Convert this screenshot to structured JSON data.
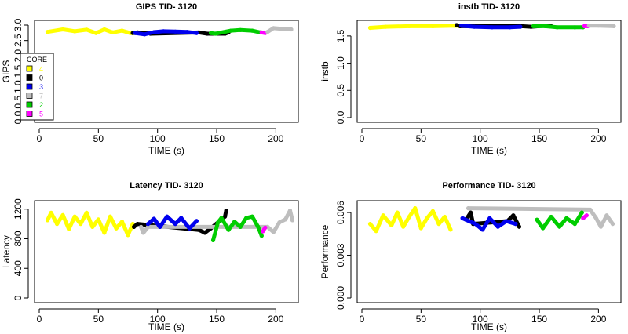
{
  "chart_data": [
    {
      "type": "scatter",
      "title": "GIPS TID- 3120",
      "xlabel": "TIME (s)",
      "ylabel": "GIPS",
      "xlim": [
        0,
        215
      ],
      "ylim": [
        0,
        3.0
      ],
      "x_ticks": [
        0,
        50,
        100,
        150,
        200
      ],
      "y_ticks": [
        0.0,
        0.5,
        1.0,
        1.5,
        2.0,
        2.5,
        3.0
      ],
      "y_tick_labels": [
        "0.0",
        "0.5",
        "1.0",
        "1.5",
        "2.0",
        "2.5",
        "3.0"
      ],
      "legend": {
        "title": "CORE",
        "placement": "left",
        "entries": [
          {
            "label": "4",
            "color": "#ffff00"
          },
          {
            "label": "0",
            "color": "#000000"
          },
          {
            "label": "3",
            "color": "#0000ee"
          },
          {
            "label": "7",
            "color": "#bebebe"
          },
          {
            "label": "2",
            "color": "#00cd00"
          },
          {
            "label": "5",
            "color": "#ff00ff"
          }
        ]
      },
      "series": [
        {
          "core": "4",
          "color": "#ffff00",
          "points": [
            [
              7,
              2.78
            ],
            [
              20,
              2.86
            ],
            [
              30,
              2.8
            ],
            [
              40,
              2.85
            ],
            [
              48,
              2.74
            ],
            [
              55,
              2.86
            ],
            [
              62,
              2.76
            ],
            [
              70,
              2.82
            ],
            [
              77,
              2.74
            ],
            [
              86,
              2.74
            ]
          ]
        },
        {
          "core": "0",
          "color": "#000000",
          "points": [
            [
              79,
              2.74
            ],
            [
              83,
              2.76
            ],
            [
              92,
              2.74
            ],
            [
              94,
              2.72
            ],
            [
              135,
              2.76
            ],
            [
              142,
              2.72
            ],
            [
              157,
              2.72
            ],
            [
              160,
              2.76
            ]
          ]
        },
        {
          "core": "3",
          "color": "#0000ee",
          "points": [
            [
              81,
              2.74
            ],
            [
              89,
              2.7
            ],
            [
              97,
              2.77
            ],
            [
              105,
              2.8
            ],
            [
              115,
              2.79
            ],
            [
              125,
              2.78
            ],
            [
              133,
              2.74
            ]
          ]
        },
        {
          "core": "2",
          "color": "#00cd00",
          "points": [
            [
              145,
              2.74
            ],
            [
              149,
              2.72
            ],
            [
              162,
              2.82
            ],
            [
              170,
              2.84
            ],
            [
              180,
              2.82
            ],
            [
              187,
              2.76
            ]
          ]
        },
        {
          "core": "5",
          "color": "#ff00ff",
          "points": [
            [
              188,
              2.76
            ],
            [
              191,
              2.74
            ]
          ]
        },
        {
          "core": "7",
          "color": "#bebebe",
          "points": [
            [
              193,
              2.78
            ],
            [
              198,
              2.9
            ],
            [
              205,
              2.88
            ],
            [
              213,
              2.86
            ]
          ]
        }
      ]
    },
    {
      "type": "scatter",
      "title": "instb TID- 3120",
      "xlabel": "TIME (s)",
      "ylabel": "instb",
      "xlim": [
        0,
        215
      ],
      "ylim": [
        0,
        1.7
      ],
      "x_ticks": [
        0,
        50,
        100,
        150,
        200
      ],
      "y_ticks": [
        0.0,
        0.5,
        1.0,
        1.5
      ],
      "y_tick_labels": [
        "0.0",
        "0.5",
        "1.0",
        "1.5"
      ],
      "series": [
        {
          "core": "4",
          "color": "#ffff00",
          "points": [
            [
              7,
              1.65
            ],
            [
              20,
              1.67
            ],
            [
              40,
              1.68
            ],
            [
              60,
              1.68
            ],
            [
              78,
              1.69
            ],
            [
              93,
              1.68
            ]
          ]
        },
        {
          "core": "0",
          "color": "#000000",
          "points": [
            [
              80,
              1.7
            ],
            [
              83,
              1.68
            ],
            [
              92,
              1.68
            ],
            [
              135,
              1.68
            ],
            [
              143,
              1.67
            ],
            [
              155,
              1.69
            ],
            [
              160,
              1.68
            ]
          ]
        },
        {
          "core": "3",
          "color": "#0000ee",
          "points": [
            [
              84,
              1.69
            ],
            [
              95,
              1.67
            ],
            [
              110,
              1.66
            ],
            [
              125,
              1.66
            ],
            [
              134,
              1.67
            ]
          ]
        },
        {
          "core": "2",
          "color": "#00cd00",
          "points": [
            [
              145,
              1.68
            ],
            [
              155,
              1.68
            ],
            [
              165,
              1.66
            ],
            [
              180,
              1.66
            ],
            [
              187,
              1.66
            ]
          ]
        },
        {
          "core": "5",
          "color": "#ff00ff",
          "points": [
            [
              188,
              1.68
            ],
            [
              191,
              1.68
            ]
          ]
        },
        {
          "core": "7",
          "color": "#bebebe",
          "points": [
            [
              192,
              1.69
            ],
            [
              200,
              1.69
            ],
            [
              213,
              1.68
            ]
          ]
        }
      ]
    },
    {
      "type": "scatter",
      "title": "Latency TID- 3120",
      "xlabel": "TIME (s)",
      "ylabel": "Latency",
      "xlim": [
        0,
        215
      ],
      "ylim": [
        0,
        1250
      ],
      "x_ticks": [
        0,
        50,
        100,
        150,
        200
      ],
      "y_ticks": [
        0,
        400,
        800,
        1200
      ],
      "y_tick_labels": [
        "0",
        "400",
        "800",
        "1200"
      ],
      "series": [
        {
          "core": "4",
          "color": "#ffff00",
          "points": [
            [
              7,
              1050
            ],
            [
              10,
              1150
            ],
            [
              15,
              1000
            ],
            [
              20,
              1120
            ],
            [
              25,
              930
            ],
            [
              30,
              1100
            ],
            [
              35,
              1000
            ],
            [
              40,
              1150
            ],
            [
              45,
              960
            ],
            [
              50,
              1060
            ],
            [
              55,
              880
            ],
            [
              60,
              1100
            ],
            [
              65,
              940
            ],
            [
              70,
              1030
            ],
            [
              75,
              850
            ],
            [
              79,
              1000
            ]
          ]
        },
        {
          "core": "0",
          "color": "#000000",
          "points": [
            [
              80,
              960
            ],
            [
              83,
              1000
            ],
            [
              135,
              920
            ],
            [
              140,
              880
            ],
            [
              145,
              940
            ],
            [
              157,
              1100
            ],
            [
              158,
              1180
            ]
          ]
        },
        {
          "core": "7",
          "color": "#bebebe",
          "points": [
            [
              86,
              960
            ],
            [
              88,
              880
            ],
            [
              92,
              960
            ],
            [
              193,
              960
            ],
            [
              198,
              890
            ],
            [
              203,
              1020
            ],
            [
              208,
              1060
            ],
            [
              212,
              1180
            ],
            [
              214,
              1050
            ]
          ]
        },
        {
          "core": "3",
          "color": "#0000ee",
          "points": [
            [
              92,
              1000
            ],
            [
              97,
              1070
            ],
            [
              102,
              960
            ],
            [
              108,
              1100
            ],
            [
              115,
              1000
            ],
            [
              120,
              1080
            ],
            [
              127,
              940
            ],
            [
              133,
              1040
            ]
          ]
        },
        {
          "core": "2",
          "color": "#00cd00",
          "points": [
            [
              147,
              780
            ],
            [
              151,
              1020
            ],
            [
              154,
              1080
            ],
            [
              160,
              920
            ],
            [
              165,
              1030
            ],
            [
              170,
              960
            ],
            [
              175,
              1080
            ],
            [
              180,
              1100
            ],
            [
              185,
              960
            ],
            [
              188,
              840
            ]
          ]
        },
        {
          "core": "5",
          "color": "#ff00ff",
          "points": [
            [
              189,
              900
            ],
            [
              191,
              950
            ]
          ]
        }
      ]
    },
    {
      "type": "scatter",
      "title": "Performance TID- 3120",
      "xlabel": "TIME (s)",
      "ylabel": "Performance",
      "xlim": [
        0,
        215
      ],
      "ylim": [
        0,
        0.0065
      ],
      "x_ticks": [
        0,
        50,
        100,
        150,
        200
      ],
      "y_ticks": [
        0.0,
        0.003,
        0.006
      ],
      "y_tick_labels": [
        "0.000",
        "0.003",
        "0.006"
      ],
      "series": [
        {
          "core": "4",
          "color": "#ffff00",
          "points": [
            [
              7,
              0.0052
            ],
            [
              12,
              0.0047
            ],
            [
              18,
              0.0058
            ],
            [
              25,
              0.0051
            ],
            [
              30,
              0.006
            ],
            [
              35,
              0.005
            ],
            [
              40,
              0.0057
            ],
            [
              45,
              0.0063
            ],
            [
              50,
              0.0049
            ],
            [
              55,
              0.0056
            ],
            [
              60,
              0.0061
            ],
            [
              65,
              0.0052
            ],
            [
              70,
              0.0057
            ],
            [
              75,
              0.0048
            ]
          ]
        },
        {
          "core": "0",
          "color": "#000000",
          "points": [
            [
              88,
              0.0055
            ],
            [
              92,
              0.006
            ],
            [
              94,
              0.0052
            ],
            [
              123,
              0.0054
            ],
            [
              128,
              0.0058
            ],
            [
              133,
              0.005
            ]
          ]
        },
        {
          "core": "7",
          "color": "#bebebe",
          "points": [
            [
              90,
              0.0063
            ],
            [
              193,
              0.0062
            ],
            [
              198,
              0.0056
            ],
            [
              202,
              0.005
            ],
            [
              207,
              0.0058
            ],
            [
              212,
              0.0052
            ]
          ]
        },
        {
          "core": "3",
          "color": "#0000ee",
          "points": [
            [
              85,
              0.0056
            ],
            [
              96,
              0.0052
            ],
            [
              102,
              0.0048
            ],
            [
              108,
              0.0056
            ],
            [
              115,
              0.005
            ],
            [
              122,
              0.0054
            ],
            [
              130,
              0.0052
            ]
          ]
        },
        {
          "core": "2",
          "color": "#00cd00",
          "points": [
            [
              148,
              0.0055
            ],
            [
              153,
              0.0049
            ],
            [
              160,
              0.0057
            ],
            [
              167,
              0.005
            ],
            [
              173,
              0.0056
            ],
            [
              180,
              0.0052
            ],
            [
              186,
              0.006
            ]
          ]
        },
        {
          "core": "5",
          "color": "#ff00ff",
          "points": [
            [
              187,
              0.0056
            ],
            [
              190,
              0.0058
            ]
          ]
        }
      ]
    }
  ]
}
